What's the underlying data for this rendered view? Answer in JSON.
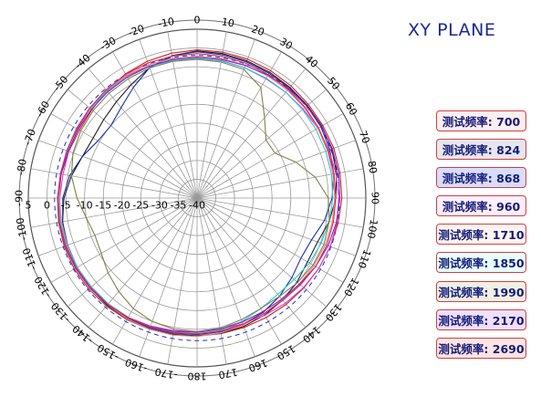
{
  "chart_data": {
    "type": "polar",
    "title": "XY PLANE",
    "angle_ticks": [
      "0",
      "10",
      "20",
      "30",
      "40",
      "50",
      "60",
      "70",
      "80",
      "90",
      "100",
      "110",
      "120",
      "130",
      "140",
      "150",
      "160",
      "170",
      "180",
      "-170",
      "-160",
      "-150",
      "-140",
      "-130",
      "-120",
      "-110",
      "-100",
      "-90",
      "-80",
      "-70",
      "-60",
      "-50",
      "-40",
      "-30",
      "-20",
      "-10"
    ],
    "radial_ticks": [
      "5",
      "0",
      "-5",
      "-10",
      "-15",
      "-20",
      "-25",
      "-30",
      "-35",
      "-40"
    ],
    "radial_range": [
      -40,
      5
    ],
    "reference_circle": -2,
    "legend_placement": "right",
    "series": [
      {
        "name": "测试频率: 700",
        "color": "#d02020",
        "bg": "#ffeeee",
        "values": [
          -0.5,
          -0.5,
          -0.6,
          -0.8,
          -1,
          -1.2,
          -1.3,
          -1.2,
          -1.3,
          -1.4,
          -1.8,
          -2.2,
          -2.5,
          -2.8,
          -3,
          -3.2,
          -3.3,
          -3.3,
          -3.2,
          -3,
          -2.8,
          -2.6,
          -2.4,
          -2.3,
          -2.2,
          -2.3,
          -2.5,
          -2.8,
          -3.2,
          -3.6,
          -3.8,
          -3.4,
          -2.6,
          -1.8,
          -1.2,
          -0.8
        ]
      },
      {
        "name": "测试频率: 824",
        "color": "#202020",
        "bg": "#e6e6ee",
        "values": [
          -0.8,
          -0.9,
          -1.1,
          -1.3,
          -1.5,
          -1.6,
          -1.6,
          -1.8,
          -2.2,
          -3,
          -4.2,
          -5.8,
          -6,
          -5.2,
          -4.5,
          -4,
          -3.6,
          -3.4,
          -3.3,
          -3.1,
          -2.9,
          -2.8,
          -2.7,
          -2.8,
          -2.9,
          -3.1,
          -3.6,
          -4.5,
          -6,
          -7.5,
          -8,
          -7.5,
          -6.5,
          -5,
          -3,
          -1.5
        ]
      },
      {
        "name": "测试频率: 868",
        "color": "#1830b0",
        "bg": "#d8dcff",
        "values": [
          -1,
          -1.2,
          -1.4,
          -1.6,
          -1.7,
          -1.8,
          -1.9,
          -2.3,
          -3,
          -4,
          -5.5,
          -7.5,
          -8,
          -7,
          -5.8,
          -4.8,
          -4.2,
          -3.8,
          -3.6,
          -3.4,
          -3.2,
          -3,
          -2.9,
          -3,
          -3.1,
          -3.3,
          -3.6,
          -4.2,
          -5.5,
          -7.5,
          -9.5,
          -10,
          -8.5,
          -6,
          -3,
          -1.5
        ]
      },
      {
        "name": "测试频率: 960",
        "color": "#d040d0",
        "bg": "#ffeeff",
        "values": [
          -3,
          -2.8,
          -3,
          -3.3,
          -3.2,
          -3.1,
          -2.8,
          -2.6,
          -2.4,
          -2.2,
          -2.1,
          -2.2,
          -2.5,
          -2.9,
          -3.4,
          -3.9,
          -4.3,
          -4.5,
          -4.4,
          -4.1,
          -3.7,
          -3.3,
          -3,
          -2.8,
          -2.7,
          -2.8,
          -3,
          -3.4,
          -3.7,
          -3.6,
          -3.2,
          -2.8,
          -2.5,
          -2.4,
          -2.6,
          -2.8
        ]
      },
      {
        "name": "测试频率: 1710",
        "color": "#e88880",
        "bg": "#fff4f0",
        "values": [
          -2.2,
          -2.2,
          -2.3,
          -2.4,
          -2.5,
          -2.6,
          -2.8,
          -3,
          -3.2,
          -3.3,
          -3.4,
          -3.6,
          -4,
          -4.4,
          -4.6,
          -4.4,
          -4,
          -3.5,
          -3.1,
          -2.9,
          -2.8,
          -2.8,
          -2.9,
          -3,
          -3.1,
          -3.2,
          -3.3,
          -3.3,
          -3.2,
          -3,
          -2.8,
          -2.6,
          -2.4,
          -2.3,
          -2.2,
          -2.2
        ]
      },
      {
        "name": "测试频率: 1850",
        "color": "#20c8e0",
        "bg": "#e8ffff",
        "values": [
          -2.8,
          -2.9,
          -3,
          -3.1,
          -3.2,
          -3.3,
          -3.4,
          -3.5,
          -3.6,
          -3.8,
          -4.2,
          -4.8,
          -5.4,
          -6.2,
          -6.5,
          -6,
          -5,
          -4.2,
          -3.8,
          -3.6,
          -3.4,
          -3.3,
          -3.2,
          -3.2,
          -3.1,
          -3,
          -3,
          -3,
          -3,
          -3,
          -2.9,
          -2.8,
          -2.8,
          -2.7,
          -2.7,
          -2.8
        ]
      },
      {
        "name": "测试频率: 1990",
        "color": "#808048",
        "bg": "#f0f0e4",
        "values": [
          -3,
          -3.2,
          -3.5,
          -6,
          -12,
          -16,
          -16,
          -12,
          -8,
          -5,
          -4.2,
          -4,
          -4.3,
          -5,
          -5.8,
          -6,
          -5.5,
          -4.8,
          -4.4,
          -4.5,
          -5,
          -6,
          -7.5,
          -9,
          -10.5,
          -11,
          -10,
          -8,
          -6,
          -4.8,
          -4.2,
          -3.8,
          -3.5,
          -3.3,
          -3.1,
          -3
        ]
      },
      {
        "name": "测试频率: 2170",
        "color": "#8020d0",
        "bg": "#f0e0ff",
        "values": [
          -2.5,
          -2.5,
          -2.4,
          -2.2,
          -2,
          -1.8,
          -1.7,
          -1.6,
          -1.7,
          -1.9,
          -2.3,
          -2.8,
          -3.5,
          -4.3,
          -4.8,
          -5,
          -4.8,
          -4.5,
          -4.2,
          -3.9,
          -3.5,
          -3.2,
          -2.9,
          -2.7,
          -2.6,
          -2.6,
          -2.7,
          -2.9,
          -3.2,
          -3.4,
          -3.4,
          -3.2,
          -3,
          -2.8,
          -2.6,
          -2.5
        ]
      },
      {
        "name": "测试频率: 2690",
        "color": "#e02848",
        "bg": "#ffe4e4",
        "values": [
          -1.5,
          -1.6,
          -1.8,
          -2,
          -2.2,
          -2.4,
          -2.6,
          -2.8,
          -2.9,
          -3,
          -3.1,
          -3.2,
          -3.5,
          -4,
          -4.4,
          -4.4,
          -4.2,
          -4,
          -3.8,
          -3.6,
          -3.4,
          -3.2,
          -3,
          -2.9,
          -2.8,
          -2.7,
          -2.7,
          -2.8,
          -3,
          -3.1,
          -3,
          -2.7,
          -2.3,
          -2,
          -1.7,
          -1.6
        ]
      }
    ]
  }
}
